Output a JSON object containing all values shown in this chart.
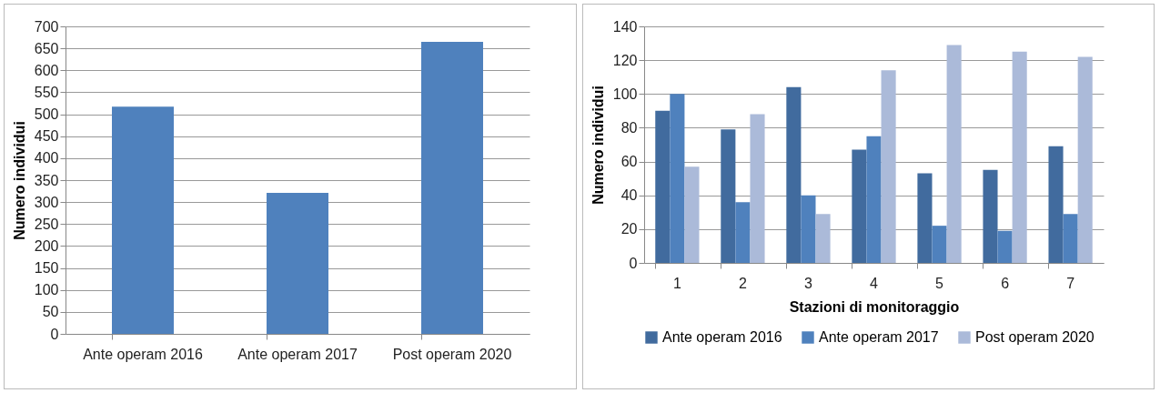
{
  "chart_data": [
    {
      "type": "bar",
      "categories": [
        "Ante operam 2016",
        "Ante operam 2017",
        "Post operam 2020"
      ],
      "values": [
        517,
        321,
        665
      ],
      "color": "#4f81bd",
      "ylabel": "Numero individui",
      "ylim": [
        0,
        700
      ],
      "yticks": [
        0,
        50,
        100,
        150,
        200,
        250,
        300,
        350,
        400,
        450,
        500,
        550,
        600,
        650,
        700
      ],
      "grid": "y",
      "legend": false
    },
    {
      "type": "bar",
      "categories": [
        "1",
        "2",
        "3",
        "4",
        "5",
        "6",
        "7"
      ],
      "xlabel": "Stazioni di monitoraggio",
      "ylabel": "Numero individui",
      "ylim": [
        0,
        140
      ],
      "yticks": [
        0,
        20,
        40,
        60,
        80,
        100,
        120,
        140
      ],
      "grid": "y",
      "legend": "bottom",
      "series": [
        {
          "name": "Ante operam 2016",
          "color": "#416b9e",
          "values": [
            90,
            79,
            104,
            67,
            53,
            55,
            69
          ]
        },
        {
          "name": "Ante operam 2017",
          "color": "#4f81bd",
          "values": [
            100,
            36,
            40,
            75,
            22,
            19,
            29
          ]
        },
        {
          "name": "Post operam 2020",
          "color": "#abbad9",
          "values": [
            57,
            88,
            29,
            114,
            129,
            125,
            122
          ]
        }
      ]
    }
  ]
}
